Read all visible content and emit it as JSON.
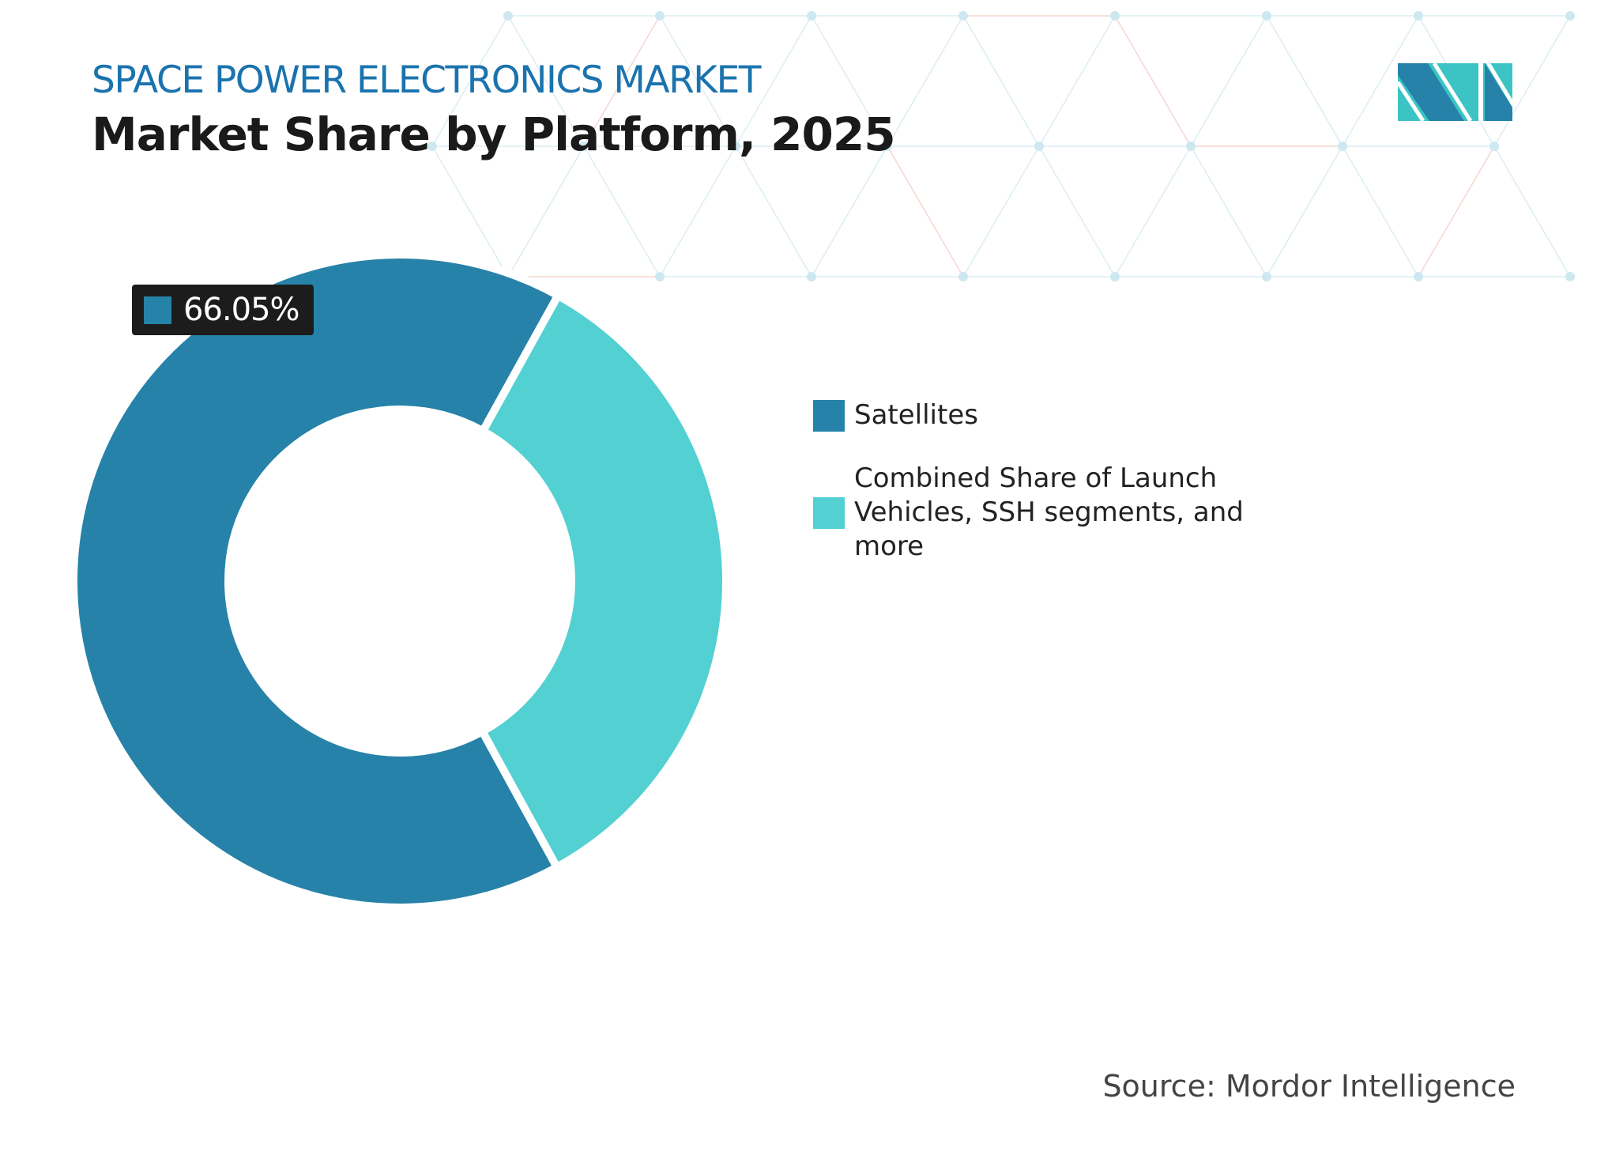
{
  "header": {
    "subtitle": "SPACE POWER ELECTRONICS MARKET",
    "title": "Market Share by Platform, 2025"
  },
  "logo": {
    "name": "mordor-intelligence-logo",
    "colors": [
      "#2682a8",
      "#3cc4c4"
    ]
  },
  "chart_data": {
    "type": "pie",
    "variant": "donut",
    "categories": [
      "Satellites",
      "Combined Share of Launch Vehicles, SSH segments, and more"
    ],
    "values": [
      66.05,
      33.95
    ],
    "colors": [
      "#2682a8",
      "#52d0d2"
    ],
    "data_labels": [
      {
        "category": "Satellites",
        "text": "66.05%"
      }
    ],
    "legend_position": "right"
  },
  "legend": {
    "items": [
      {
        "label": "Satellites",
        "color": "#2682a8"
      },
      {
        "label": "Combined Share of Launch Vehicles, SSH segments, and more",
        "color": "#52d0d2"
      }
    ]
  },
  "data_label": "66.05%",
  "source": "Source: Mordor Intelligence"
}
